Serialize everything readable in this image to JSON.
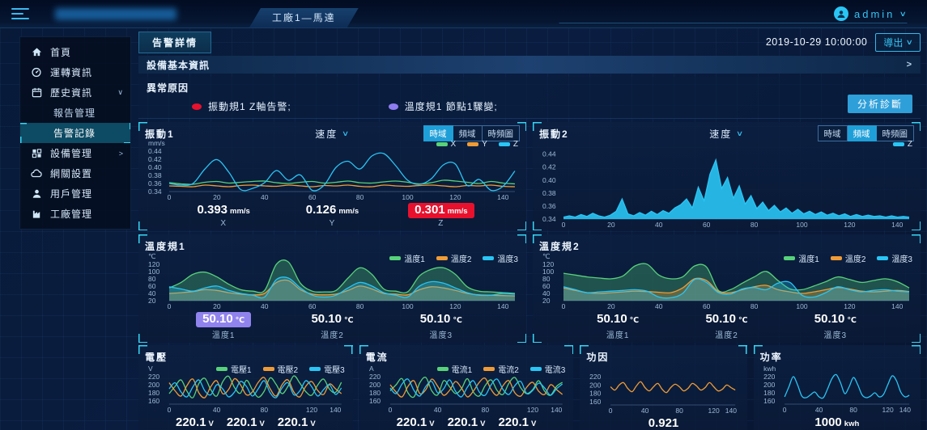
{
  "topbar": {
    "app_tab": "工廠1—馬達",
    "user": "admin"
  },
  "toolbar": {
    "alarm_detail_tab": "告警詳情",
    "timestamp": "2019-10-29 10:00:00",
    "export_label": "導出"
  },
  "device_info_bar": {
    "label": "設備基本資訊"
  },
  "abnormal": {
    "title": "異常原因",
    "items": [
      {
        "color": "#e8112d",
        "text": "振動規1 Z軸告警;"
      },
      {
        "color": "#8f7cf0",
        "text": "溫度規1 節點1驟變;"
      }
    ],
    "analyze_button": "分析診斷"
  },
  "sidebar": {
    "items": [
      {
        "id": "home",
        "label": "首頁",
        "icon": "home-icon"
      },
      {
        "id": "operation",
        "label": "運轉資訊",
        "icon": "gauge-icon"
      },
      {
        "id": "history",
        "label": "歷史資訊",
        "icon": "history-icon",
        "chevron": "down"
      },
      {
        "id": "report",
        "label": "報告管理",
        "sub": true
      },
      {
        "id": "alarm-record",
        "label": "告警記錄",
        "sub": true,
        "active": true
      },
      {
        "id": "device",
        "label": "設備管理",
        "icon": "device-icon",
        "chevron": "right"
      },
      {
        "id": "gateway",
        "label": "網關設置",
        "icon": "gateway-icon"
      },
      {
        "id": "user",
        "label": "用戶管理",
        "icon": "user-icon"
      },
      {
        "id": "factory",
        "label": "工廠管理",
        "icon": "factory-icon"
      }
    ]
  },
  "colors": {
    "accent": "#29c5f5",
    "green": "#57d27a",
    "orange": "#f09c36",
    "cyan": "#29c5f5",
    "red": "#e8112d",
    "purple": "#9183ee"
  },
  "chart_data": [
    {
      "id": "vibration-1",
      "title": "振動1",
      "type": "line",
      "slot": "top",
      "dropdown": "速度",
      "tabs": [
        "時域",
        "頻域",
        "時頻圖"
      ],
      "active_tab": 0,
      "unit": "mm/s",
      "y_ticks": [
        0.44,
        0.42,
        0.4,
        0.38,
        0.36,
        0.34
      ],
      "y_range": [
        0.34,
        0.452
      ],
      "x_ticks": [
        0,
        20,
        40,
        60,
        80,
        100,
        120,
        140
      ],
      "x_max": 145,
      "series": [
        {
          "name": "X",
          "color": "#57d27a",
          "smooth": true,
          "values": [
            0.362,
            0.359,
            0.358,
            0.363,
            0.365,
            0.361,
            0.363,
            0.365,
            0.366,
            0.362,
            0.36,
            0.363,
            0.365,
            0.361,
            0.363,
            0.366,
            0.362,
            0.361,
            0.364,
            0.366,
            0.363,
            0.359,
            0.362,
            0.368,
            0.366,
            0.363,
            0.36,
            0.365,
            0.361,
            0.359
          ]
        },
        {
          "name": "Y",
          "color": "#f09c36",
          "smooth": true,
          "values": [
            0.354,
            0.353,
            0.352,
            0.356,
            0.354,
            0.352,
            0.355,
            0.356,
            0.354,
            0.353,
            0.356,
            0.354,
            0.352,
            0.355,
            0.354,
            0.356,
            0.353,
            0.352,
            0.356,
            0.354,
            0.353,
            0.355,
            0.356,
            0.354,
            0.352,
            0.355,
            0.354,
            0.356,
            0.353,
            0.352
          ]
        },
        {
          "name": "Z",
          "color": "#29c5f5",
          "smooth": true,
          "values": [
            0.36,
            0.356,
            0.36,
            0.396,
            0.419,
            0.388,
            0.345,
            0.348,
            0.362,
            0.392,
            0.368,
            0.381,
            0.343,
            0.356,
            0.4,
            0.415,
            0.396,
            0.428,
            0.434,
            0.404,
            0.368,
            0.358,
            0.372,
            0.406,
            0.408,
            0.355,
            0.37,
            0.343,
            0.353,
            0.391
          ]
        }
      ],
      "stats": [
        {
          "value": "0.393",
          "unit": "mm/s",
          "label": "X"
        },
        {
          "value": "0.126",
          "unit": "mm/s",
          "label": "Y"
        },
        {
          "value": "0.301",
          "unit": "mm/s",
          "label": "Z",
          "highlight": "#e8112d"
        }
      ]
    },
    {
      "id": "vibration-2",
      "title": "振動2",
      "type": "area",
      "slot": "top",
      "dropdown": "速度",
      "tabs": [
        "時域",
        "頻域",
        "時頻圖"
      ],
      "active_tab": 1,
      "unit": "",
      "y_ticks": [
        0.44,
        0.42,
        0.4,
        0.38,
        0.36,
        0.34
      ],
      "y_range": [
        0.34,
        0.452
      ],
      "x_ticks": [
        0,
        20,
        40,
        60,
        80,
        100,
        120,
        140
      ],
      "x_max": 145,
      "series": [
        {
          "name": "Z",
          "color": "#29c5f5",
          "smooth": false,
          "fill": true,
          "fill_opacity": 0.9,
          "values": [
            0.343,
            0.345,
            0.343,
            0.347,
            0.344,
            0.349,
            0.345,
            0.343,
            0.346,
            0.352,
            0.371,
            0.348,
            0.345,
            0.35,
            0.346,
            0.352,
            0.347,
            0.353,
            0.349,
            0.357,
            0.362,
            0.371,
            0.357,
            0.389,
            0.368,
            0.409,
            0.431,
            0.387,
            0.404,
            0.372,
            0.391,
            0.363,
            0.376,
            0.356,
            0.366,
            0.353,
            0.361,
            0.351,
            0.357,
            0.349,
            0.355,
            0.348,
            0.352,
            0.347,
            0.351,
            0.346,
            0.349,
            0.345,
            0.348,
            0.344,
            0.347,
            0.344,
            0.346,
            0.344,
            0.345,
            0.343,
            0.345,
            0.343,
            0.344,
            0.343
          ]
        }
      ],
      "stats": []
    },
    {
      "id": "temperature-1",
      "title": "溫度規1",
      "type": "area",
      "slot": "top",
      "unit": "℃",
      "y_ticks": [
        120,
        100,
        80,
        60,
        40,
        20
      ],
      "y_range": [
        20,
        135
      ],
      "x_ticks": [
        0,
        20,
        40,
        60,
        80,
        100,
        120,
        140
      ],
      "x_max": 145,
      "series": [
        {
          "name": "溫度1",
          "color": "#57d27a",
          "smooth": true,
          "fill": true,
          "fill_opacity": 0.3,
          "values": [
            55,
            70,
            92,
            98,
            85,
            65,
            50,
            46,
            48,
            120,
            126,
            68,
            46,
            44,
            48,
            82,
            110,
            92,
            52,
            46,
            44,
            88,
            106,
            110,
            92,
            58,
            46,
            44,
            42,
            40
          ]
        },
        {
          "name": "溫度2",
          "color": "#f09c36",
          "smooth": true,
          "fill": true,
          "fill_opacity": 0.3,
          "values": [
            40,
            42,
            45,
            50,
            48,
            42,
            38,
            36,
            40,
            70,
            75,
            50,
            38,
            36,
            38,
            48,
            60,
            52,
            40,
            38,
            36,
            50,
            58,
            55,
            48,
            40,
            36,
            35,
            34,
            33
          ]
        },
        {
          "name": "溫度3",
          "color": "#29c5f5",
          "smooth": true,
          "fill": true,
          "fill_opacity": 0.3,
          "values": [
            58,
            52,
            46,
            55,
            60,
            48,
            40,
            35,
            30,
            78,
            82,
            55,
            35,
            30,
            35,
            55,
            70,
            60,
            42,
            35,
            30,
            60,
            72,
            68,
            55,
            42,
            35,
            35,
            40,
            38
          ]
        }
      ],
      "stats": [
        {
          "value": "50.10",
          "unit": "℃",
          "label": "溫度1",
          "highlight": "#9183ee"
        },
        {
          "value": "50.10",
          "unit": "℃",
          "label": "溫度2"
        },
        {
          "value": "50.10",
          "unit": "℃",
          "label": "溫度3"
        }
      ]
    },
    {
      "id": "temperature-2",
      "title": "溫度規2",
      "type": "area",
      "slot": "top",
      "unit": "℃",
      "y_ticks": [
        120,
        100,
        80,
        60,
        40,
        20
      ],
      "y_range": [
        20,
        135
      ],
      "x_ticks": [
        0,
        20,
        40,
        60,
        80,
        100,
        120,
        140
      ],
      "x_max": 145,
      "series": [
        {
          "name": "溫度1",
          "color": "#57d27a",
          "smooth": true,
          "fill": true,
          "fill_opacity": 0.3,
          "values": [
            95,
            90,
            85,
            82,
            80,
            88,
            115,
            120,
            90,
            80,
            85,
            115,
            112,
            48,
            50,
            68,
            85,
            100,
            75,
            52,
            50,
            60,
            72,
            85,
            78,
            70,
            75,
            80,
            72,
            55
          ]
        },
        {
          "name": "溫度2",
          "color": "#f09c36",
          "smooth": true,
          "fill": true,
          "fill_opacity": 0.3,
          "values": [
            55,
            48,
            42,
            40,
            42,
            44,
            46,
            45,
            43,
            42,
            55,
            80,
            75,
            45,
            42,
            50,
            58,
            62,
            50,
            44,
            40,
            44,
            50,
            56,
            52,
            46,
            44,
            46,
            48,
            45
          ]
        },
        {
          "name": "溫度3",
          "color": "#29c5f5",
          "smooth": true,
          "fill": true,
          "fill_opacity": 0.3,
          "values": [
            58,
            50,
            42,
            44,
            46,
            48,
            50,
            46,
            30,
            28,
            40,
            78,
            70,
            42,
            38,
            52,
            56,
            50,
            68,
            70,
            35,
            30,
            42,
            58,
            50,
            44,
            48,
            50,
            46,
            44
          ]
        }
      ],
      "stats": [
        {
          "value": "50.10",
          "unit": "℃",
          "label": "溫度1"
        },
        {
          "value": "50.10",
          "unit": "℃",
          "label": "溫度2"
        },
        {
          "value": "50.10",
          "unit": "℃",
          "label": "溫度3"
        }
      ]
    },
    {
      "id": "voltage",
      "title": "電壓",
      "type": "line",
      "slot": "bottom",
      "unit": "V",
      "y_ticks": [
        220,
        200,
        180,
        160
      ],
      "y_range": [
        152,
        238
      ],
      "x_ticks": [
        0,
        40,
        80,
        120,
        140
      ],
      "x_max": 145,
      "series": [
        {
          "name": "電壓1",
          "color": "#57d27a",
          "smooth": true,
          "values": [
            178,
            196,
            212,
            184,
            168,
            203,
            216,
            188,
            172,
            207,
            221,
            193,
            179,
            211,
            188,
            169,
            184,
            217,
            201,
            178,
            196,
            222,
            204,
            183,
            174,
            199,
            214,
            189,
            181,
            206
          ]
        },
        {
          "name": "電壓2",
          "color": "#f09c36",
          "smooth": true,
          "values": [
            205,
            185,
            172,
            198,
            214,
            180,
            168,
            195,
            210,
            178,
            188,
            215,
            200,
            175,
            182,
            206,
            218,
            190,
            172,
            200,
            212,
            182,
            170,
            196,
            208,
            186,
            176,
            202,
            190,
            178
          ]
        },
        {
          "name": "電壓3",
          "color": "#29c5f5",
          "smooth": true,
          "values": [
            190,
            205,
            182,
            170,
            195,
            212,
            185,
            175,
            200,
            190,
            170,
            182,
            208,
            196,
            172,
            190,
            210,
            180,
            168,
            192,
            205,
            175,
            185,
            210,
            195,
            172,
            188,
            200,
            176,
            192
          ]
        }
      ],
      "stats": [
        {
          "value": "220.1",
          "unit": "V",
          "label": "電壓1"
        },
        {
          "value": "220.1",
          "unit": "V",
          "label": "電壓2"
        },
        {
          "value": "220.1",
          "unit": "V",
          "label": "電壓3"
        }
      ]
    },
    {
      "id": "current",
      "title": "電流",
      "type": "line",
      "slot": "bottom",
      "unit": "A",
      "y_ticks": [
        220,
        200,
        180,
        160
      ],
      "y_range": [
        152,
        238
      ],
      "x_ticks": [
        0,
        40,
        80,
        120,
        140
      ],
      "x_max": 145,
      "series": [
        {
          "name": "電流1",
          "color": "#57d27a",
          "smooth": true,
          "values": [
            185,
            200,
            215,
            180,
            170,
            205,
            218,
            185,
            175,
            210,
            195,
            178,
            190,
            215,
            182,
            172,
            198,
            212,
            186,
            176,
            204,
            218,
            192,
            178,
            188,
            210,
            184,
            174,
            196,
            206
          ]
        },
        {
          "name": "電流2",
          "color": "#f09c36",
          "smooth": true,
          "values": [
            200,
            182,
            170,
            196,
            210,
            178,
            188,
            214,
            196,
            174,
            186,
            208,
            192,
            170,
            184,
            206,
            216,
            188,
            174,
            198,
            210,
            180,
            172,
            194,
            206,
            184,
            176,
            200,
            188,
            176
          ]
        },
        {
          "name": "電流3",
          "color": "#29c5f5",
          "smooth": true,
          "values": [
            192,
            178,
            202,
            214,
            186,
            172,
            196,
            208,
            180,
            190,
            212,
            184,
            170,
            194,
            210,
            182,
            174,
            200,
            214,
            188,
            176,
            198,
            208,
            178,
            186,
            204,
            192,
            174,
            190,
            202
          ]
        }
      ],
      "stats": [
        {
          "value": "220.1",
          "unit": "V",
          "label": "電流1"
        },
        {
          "value": "220.1",
          "unit": "V",
          "label": "電流2"
        },
        {
          "value": "220.1",
          "unit": "V",
          "label": "電流3"
        }
      ]
    },
    {
      "id": "power-factor",
      "title": "功因",
      "type": "line",
      "slot": "bottom",
      "unit": "",
      "y_ticks": [
        220,
        200,
        180,
        160
      ],
      "y_range": [
        152,
        238
      ],
      "x_ticks": [
        0,
        40,
        80,
        120,
        140
      ],
      "x_max": 145,
      "series": [
        {
          "name": "功因",
          "color": "#f09c36",
          "smooth": true,
          "legend_hidden": true,
          "values": [
            196,
            188,
            200,
            206,
            192,
            184,
            198,
            208,
            194,
            186,
            196,
            204,
            190,
            182,
            194,
            202,
            196,
            186,
            192,
            204,
            198,
            188,
            194,
            206,
            196,
            186,
            190,
            200,
            194,
            188
          ]
        }
      ],
      "stats": [
        {
          "value": "0.921",
          "unit": "",
          "label": "功因"
        }
      ]
    },
    {
      "id": "power",
      "title": "功率",
      "type": "line",
      "slot": "bottom",
      "unit": "kwh",
      "y_ticks": [
        220,
        200,
        180,
        160
      ],
      "y_range": [
        152,
        238
      ],
      "x_ticks": [
        0,
        40,
        80,
        120,
        140
      ],
      "x_max": 145,
      "series": [
        {
          "name": "功率",
          "color": "#29c5f5",
          "smooth": true,
          "legend_hidden": true,
          "values": [
            170,
            195,
            220,
            200,
            172,
            168,
            175,
            182,
            170,
            168,
            190,
            215,
            225,
            205,
            178,
            195,
            218,
            200,
            175,
            168,
            172,
            180,
            170,
            176,
            200,
            222,
            210,
            182,
            170,
            174
          ]
        }
      ],
      "stats": [
        {
          "value": "1000",
          "unit": "kwh",
          "label": "功率"
        }
      ]
    }
  ]
}
